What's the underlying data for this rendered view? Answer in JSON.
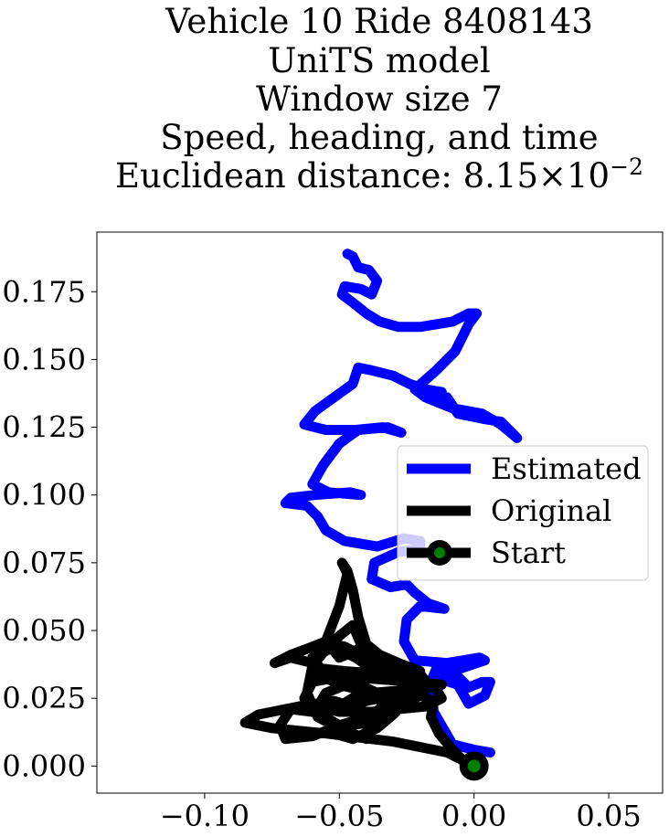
{
  "title_lines": [
    "Vehicle 10 Ride 8408143",
    "UniTS model",
    "Window size 7",
    "Speed, heading, and time",
    "Euclidean distance: "
  ],
  "title_math": {
    "mantissa": "8.15",
    "times": "×",
    "base": "10",
    "exponent": "−2"
  },
  "chart_data": {
    "type": "line",
    "title": "Vehicle 10 Ride 8408143 / UniTS model / Window size 7 / Speed, heading, and time / Euclidean distance: 8.15×10^-2",
    "xlabel": "",
    "ylabel": "",
    "xlim": [
      -0.14,
      0.07
    ],
    "ylim": [
      -0.01,
      0.197
    ],
    "xticks": [
      -0.1,
      -0.05,
      0.0,
      0.05
    ],
    "xtick_labels": [
      "−0.10",
      "−0.05",
      "0.00",
      "0.05"
    ],
    "yticks": [
      0.0,
      0.025,
      0.05,
      0.075,
      0.1,
      0.125,
      0.15,
      0.175
    ],
    "ytick_labels": [
      "0.000",
      "0.025",
      "0.050",
      "0.075",
      "0.100",
      "0.125",
      "0.150",
      "0.175"
    ],
    "grid": false,
    "legend_position": "center-right",
    "series": [
      {
        "name": "Estimated",
        "color": "#0000ff",
        "points": [
          [
            0.006,
            0.005
          ],
          [
            0.0,
            0.006
          ],
          [
            -0.008,
            0.008
          ],
          [
            -0.015,
            0.02
          ],
          [
            -0.016,
            0.031
          ],
          [
            -0.014,
            0.036
          ],
          [
            -0.007,
            0.034
          ],
          [
            -0.002,
            0.029
          ],
          [
            0.003,
            0.031
          ],
          [
            0.006,
            0.031
          ],
          [
            0.004,
            0.026
          ],
          [
            -0.002,
            0.023
          ],
          [
            -0.006,
            0.03
          ],
          [
            -0.012,
            0.032
          ],
          [
            -0.005,
            0.036
          ],
          [
            0.004,
            0.039
          ],
          [
            0.002,
            0.04
          ],
          [
            -0.01,
            0.038
          ],
          [
            -0.022,
            0.039
          ],
          [
            -0.026,
            0.046
          ],
          [
            -0.025,
            0.054
          ],
          [
            -0.02,
            0.059
          ],
          [
            -0.011,
            0.058
          ],
          [
            -0.017,
            0.06
          ],
          [
            -0.022,
            0.064
          ],
          [
            -0.025,
            0.067
          ],
          [
            -0.031,
            0.066
          ],
          [
            -0.038,
            0.069
          ],
          [
            -0.037,
            0.075
          ],
          [
            -0.028,
            0.079
          ],
          [
            -0.02,
            0.08
          ],
          [
            -0.02,
            0.083
          ],
          [
            -0.026,
            0.084
          ],
          [
            -0.036,
            0.081
          ],
          [
            -0.048,
            0.083
          ],
          [
            -0.055,
            0.087
          ],
          [
            -0.058,
            0.092
          ],
          [
            -0.062,
            0.096
          ],
          [
            -0.07,
            0.097
          ],
          [
            -0.068,
            0.099
          ],
          [
            -0.059,
            0.1
          ],
          [
            -0.046,
            0.101
          ],
          [
            -0.042,
            0.1
          ],
          [
            -0.054,
            0.101
          ],
          [
            -0.06,
            0.104
          ],
          [
            -0.056,
            0.111
          ],
          [
            -0.05,
            0.119
          ],
          [
            -0.043,
            0.124
          ],
          [
            -0.032,
            0.125
          ],
          [
            -0.027,
            0.123
          ],
          [
            -0.034,
            0.125
          ],
          [
            -0.044,
            0.124
          ],
          [
            -0.055,
            0.124
          ],
          [
            -0.063,
            0.126
          ],
          [
            -0.059,
            0.131
          ],
          [
            -0.052,
            0.136
          ],
          [
            -0.045,
            0.141
          ],
          [
            -0.043,
            0.147
          ],
          [
            -0.038,
            0.146
          ],
          [
            -0.03,
            0.144
          ],
          [
            -0.024,
            0.141
          ],
          [
            -0.018,
            0.139
          ],
          [
            -0.012,
            0.138
          ],
          [
            -0.018,
            0.136
          ],
          [
            -0.01,
            0.136
          ],
          [
            -0.006,
            0.13
          ],
          [
            0.004,
            0.128
          ],
          [
            0.01,
            0.127
          ],
          [
            0.016,
            0.121
          ],
          [
            0.01,
            0.126
          ],
          [
            0.003,
            0.13
          ],
          [
            -0.008,
            0.132
          ],
          [
            -0.018,
            0.136
          ],
          [
            -0.022,
            0.139
          ],
          [
            -0.014,
            0.146
          ],
          [
            -0.007,
            0.153
          ],
          [
            -0.002,
            0.163
          ],
          [
            0.001,
            0.167
          ],
          [
            -0.002,
            0.167
          ],
          [
            -0.008,
            0.164
          ],
          [
            -0.02,
            0.162
          ],
          [
            -0.028,
            0.162
          ],
          [
            -0.035,
            0.164
          ],
          [
            -0.04,
            0.167
          ],
          [
            -0.045,
            0.171
          ],
          [
            -0.049,
            0.174
          ],
          [
            -0.048,
            0.177
          ],
          [
            -0.042,
            0.176
          ],
          [
            -0.038,
            0.174
          ],
          [
            -0.036,
            0.179
          ],
          [
            -0.039,
            0.183
          ],
          [
            -0.043,
            0.184
          ],
          [
            -0.045,
            0.188
          ],
          [
            -0.047,
            0.189
          ]
        ]
      },
      {
        "name": "Original",
        "color": "#000000",
        "points": [
          [
            0.0,
            0.0
          ],
          [
            -0.01,
            0.005
          ],
          [
            -0.03,
            0.009
          ],
          [
            -0.055,
            0.012
          ],
          [
            -0.075,
            0.014
          ],
          [
            -0.085,
            0.016
          ],
          [
            -0.08,
            0.019
          ],
          [
            -0.065,
            0.022
          ],
          [
            -0.052,
            0.024
          ],
          [
            -0.045,
            0.022
          ],
          [
            -0.04,
            0.024
          ],
          [
            -0.03,
            0.026
          ],
          [
            -0.02,
            0.028
          ],
          [
            -0.012,
            0.03
          ],
          [
            -0.022,
            0.031
          ],
          [
            -0.035,
            0.032
          ],
          [
            -0.05,
            0.033
          ],
          [
            -0.06,
            0.031
          ],
          [
            -0.063,
            0.025
          ],
          [
            -0.055,
            0.018
          ],
          [
            -0.045,
            0.012
          ],
          [
            -0.04,
            0.01
          ],
          [
            -0.048,
            0.013
          ],
          [
            -0.058,
            0.018
          ],
          [
            -0.062,
            0.027
          ],
          [
            -0.06,
            0.037
          ],
          [
            -0.055,
            0.043
          ],
          [
            -0.05,
            0.048
          ],
          [
            -0.045,
            0.052
          ],
          [
            -0.042,
            0.045
          ],
          [
            -0.04,
            0.035
          ],
          [
            -0.042,
            0.027
          ],
          [
            -0.05,
            0.022
          ],
          [
            -0.06,
            0.02
          ],
          [
            -0.068,
            0.021
          ],
          [
            -0.072,
            0.015
          ],
          [
            -0.07,
            0.01
          ],
          [
            -0.06,
            0.011
          ],
          [
            -0.05,
            0.015
          ],
          [
            -0.04,
            0.018
          ],
          [
            -0.035,
            0.021
          ],
          [
            -0.03,
            0.024
          ],
          [
            -0.024,
            0.027
          ],
          [
            -0.018,
            0.03
          ],
          [
            -0.022,
            0.032
          ],
          [
            -0.035,
            0.034
          ],
          [
            -0.048,
            0.035
          ],
          [
            -0.057,
            0.036
          ],
          [
            -0.06,
            0.04
          ],
          [
            -0.052,
            0.044
          ],
          [
            -0.044,
            0.04
          ],
          [
            -0.038,
            0.036
          ],
          [
            -0.03,
            0.033
          ],
          [
            -0.024,
            0.031
          ],
          [
            -0.02,
            0.035
          ],
          [
            -0.028,
            0.038
          ],
          [
            -0.035,
            0.041
          ],
          [
            -0.04,
            0.045
          ],
          [
            -0.045,
            0.042
          ],
          [
            -0.05,
            0.04
          ],
          [
            -0.055,
            0.046
          ],
          [
            -0.05,
            0.059
          ],
          [
            -0.047,
            0.071
          ],
          [
            -0.049,
            0.075
          ],
          [
            -0.047,
            0.072
          ],
          [
            -0.045,
            0.065
          ],
          [
            -0.043,
            0.055
          ],
          [
            -0.04,
            0.045
          ],
          [
            -0.035,
            0.04
          ],
          [
            -0.028,
            0.037
          ],
          [
            -0.02,
            0.034
          ],
          [
            -0.017,
            0.03
          ],
          [
            -0.026,
            0.028
          ],
          [
            -0.038,
            0.027
          ],
          [
            -0.05,
            0.03
          ],
          [
            -0.058,
            0.034
          ],
          [
            -0.06,
            0.038
          ],
          [
            -0.068,
            0.04
          ],
          [
            -0.074,
            0.038
          ],
          [
            -0.068,
            0.041
          ],
          [
            -0.06,
            0.044
          ],
          [
            -0.055,
            0.046
          ],
          [
            -0.048,
            0.044
          ],
          [
            -0.04,
            0.04
          ],
          [
            -0.033,
            0.036
          ],
          [
            -0.025,
            0.033
          ],
          [
            -0.015,
            0.03
          ],
          [
            -0.012,
            0.025
          ],
          [
            -0.018,
            0.022
          ],
          [
            -0.028,
            0.021
          ],
          [
            -0.038,
            0.02
          ],
          [
            -0.05,
            0.02
          ],
          [
            -0.058,
            0.022
          ],
          [
            -0.055,
            0.027
          ],
          [
            -0.045,
            0.031
          ],
          [
            -0.036,
            0.027
          ],
          [
            -0.033,
            0.02
          ],
          [
            -0.038,
            0.016
          ],
          [
            -0.048,
            0.015
          ],
          [
            -0.052,
            0.012
          ],
          [
            -0.045,
            0.01
          ],
          [
            -0.036,
            0.014
          ],
          [
            -0.03,
            0.019
          ],
          [
            -0.026,
            0.023
          ],
          [
            -0.02,
            0.026
          ],
          [
            -0.015,
            0.024
          ],
          [
            -0.016,
            0.018
          ],
          [
            -0.013,
            0.012
          ],
          [
            -0.008,
            0.006
          ],
          [
            -0.004,
            0.002
          ],
          [
            0.0,
            0.0
          ]
        ]
      }
    ],
    "start_point": {
      "name": "Start",
      "x": 0.0,
      "y": 0.0,
      "marker_fill": "#008000",
      "marker_edge": "#000000"
    }
  },
  "legend": [
    {
      "label": "Estimated",
      "color": "#0000ff",
      "marker": false
    },
    {
      "label": "Original",
      "color": "#000000",
      "marker": false
    },
    {
      "label": "Start",
      "color": "#000000",
      "marker": true,
      "marker_fill": "#008000"
    }
  ]
}
